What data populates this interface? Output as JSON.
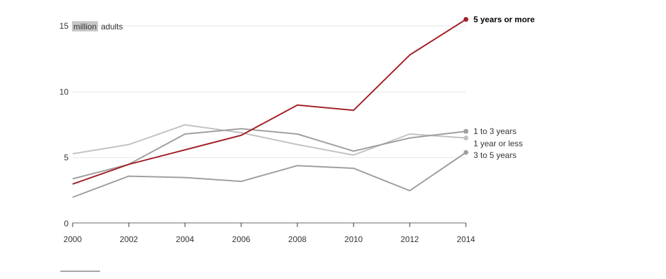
{
  "chart_data": {
    "type": "line",
    "unit_label": {
      "highlighted": "million",
      "rest": "adults"
    },
    "x": [
      2000,
      2002,
      2004,
      2006,
      2008,
      2010,
      2012,
      2014
    ],
    "xlim": [
      2000,
      2014
    ],
    "ylim": [
      0,
      15
    ],
    "yticks": [
      0,
      5,
      10,
      15
    ],
    "grid": true,
    "series": [
      {
        "name": "1 year or less",
        "color": "#c2c2c2",
        "values": [
          5.3,
          6.0,
          7.5,
          6.9,
          6.0,
          5.2,
          6.8,
          6.5
        ],
        "label_offset": 8
      },
      {
        "name": "1 to 3 years",
        "color": "#9e9e9e",
        "values": [
          3.4,
          4.5,
          6.8,
          7.2,
          6.8,
          5.5,
          6.5,
          7.0
        ],
        "label_offset": 0
      },
      {
        "name": "3 to 5 years",
        "color": "#9e9e9e",
        "values": [
          2.0,
          3.6,
          3.5,
          3.2,
          4.4,
          4.2,
          2.5,
          5.4
        ],
        "label_offset": 4
      },
      {
        "name": "5 years or more",
        "color": "#a31f24",
        "values": [
          3.0,
          4.5,
          5.6,
          6.7,
          9.0,
          8.6,
          12.8,
          15.5
        ],
        "label_offset": 0,
        "highlight": true
      }
    ]
  }
}
